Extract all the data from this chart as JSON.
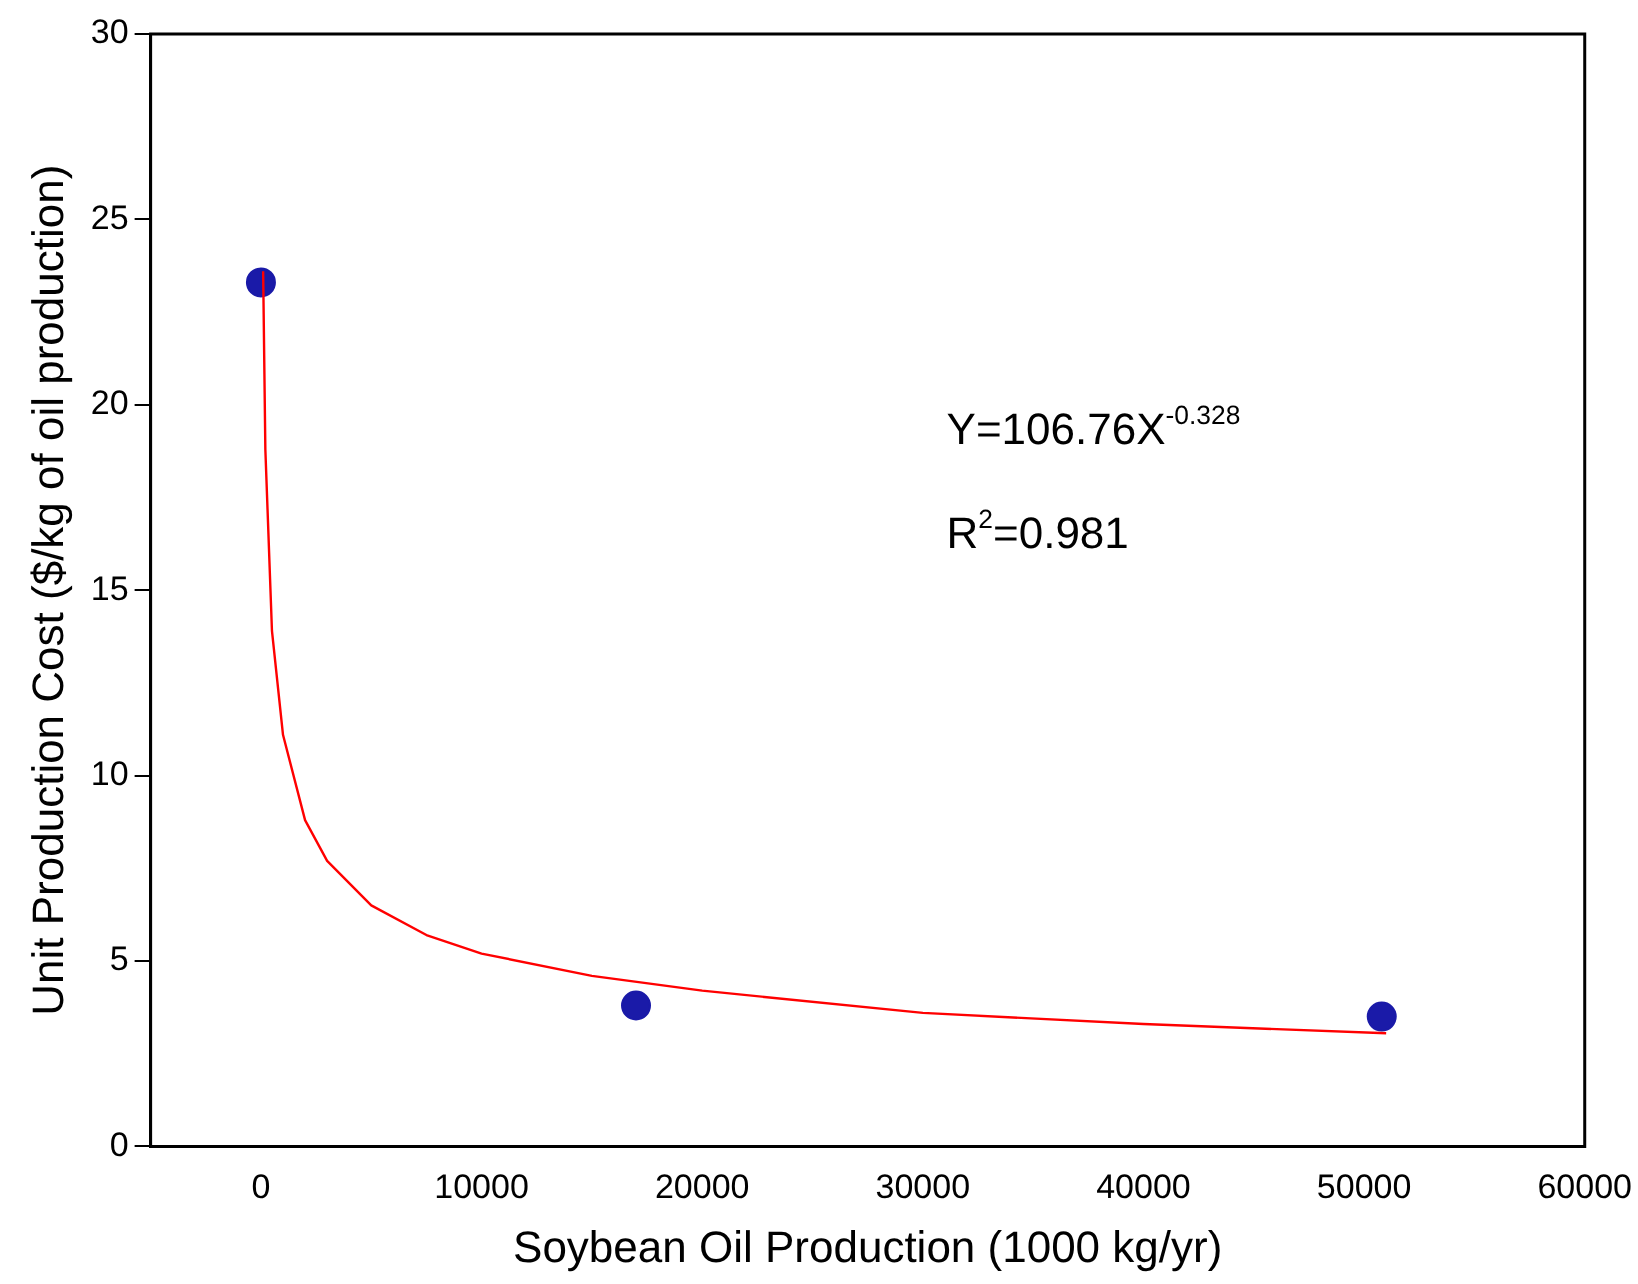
{
  "chart_data": {
    "type": "scatter",
    "xlabel": "Soybean Oil Production (1000 kg/yr)",
    "ylabel": "Unit Production Cost ($/kg of oil production)",
    "xlim": [
      -5000,
      60000
    ],
    "xticks": [
      0,
      10000,
      20000,
      30000,
      40000,
      50000,
      60000
    ],
    "ylim": [
      0,
      30
    ],
    "yticks": [
      0,
      5,
      10,
      15,
      20,
      25,
      30
    ],
    "grid": false,
    "legend": false,
    "marker": "circle",
    "series": [
      {
        "color": "#1a1aa8",
        "x": [
          0,
          17000,
          50800
        ],
        "values": [
          23.3,
          3.8,
          3.5
        ]
      },
      {
        "type": "line",
        "color": "#ff0000",
        "marker": "none",
        "x": [
          100,
          200,
          500,
          1000,
          2000,
          3000,
          5000,
          7500,
          10000,
          15000,
          20000,
          30000,
          40000,
          51000
        ],
        "values": [
          23.6,
          18.8,
          13.9,
          11.1,
          8.8,
          7.7,
          6.5,
          5.7,
          5.2,
          4.6,
          4.2,
          3.6,
          3.3,
          3.05
        ]
      }
    ],
    "annotations": [
      "Y=106.76X$^{-0.328}$",
      "R$^{2}$=0.981"
    ]
  }
}
